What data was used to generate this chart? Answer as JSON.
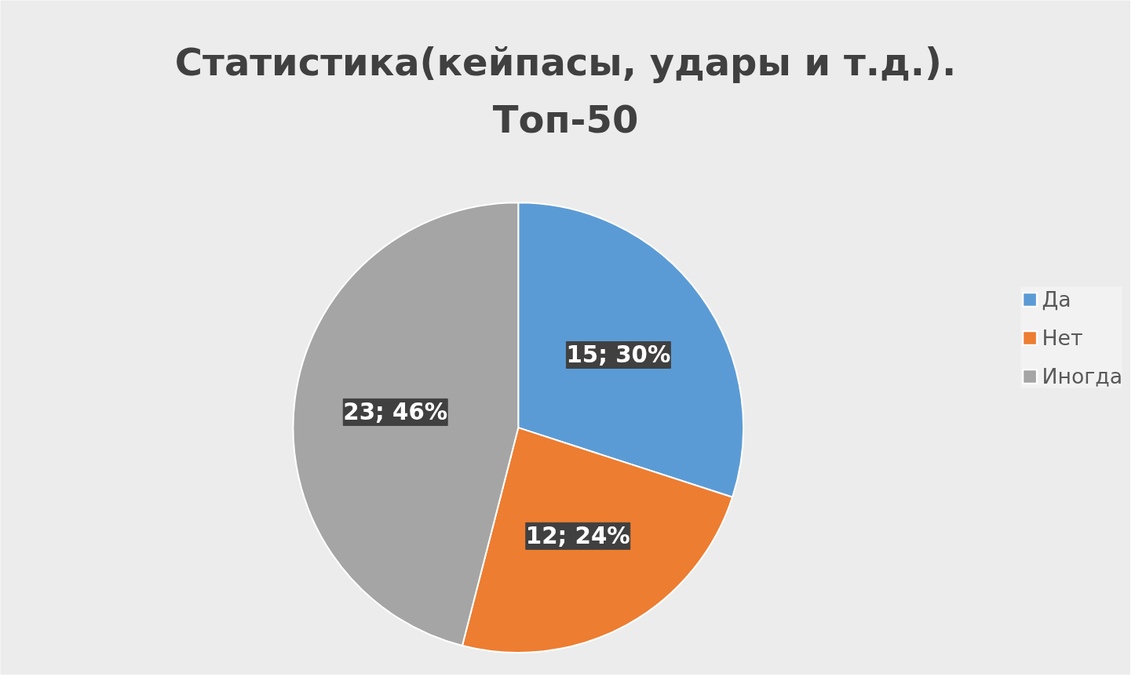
{
  "chart_data": {
    "type": "pie",
    "title": "Статистика(кейпасы, удары и т.д.).\nТоп-50",
    "categories": [
      "Да",
      "Нет",
      "Иногда"
    ],
    "values": [
      15,
      12,
      23
    ],
    "colors": [
      "#5b9bd5",
      "#ed7d31",
      "#a5a5a5"
    ],
    "value_labels": [
      "15; 30%",
      "12; 24%",
      "23; 46%"
    ],
    "legend": "right"
  }
}
